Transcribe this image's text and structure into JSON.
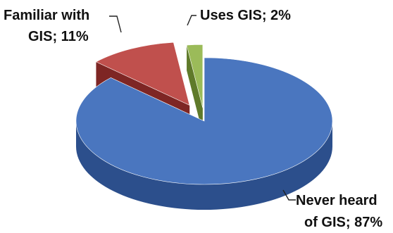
{
  "chart_data": {
    "type": "pie",
    "style": "3d-exploded",
    "title": "",
    "slices": [
      {
        "label_line1": "Never heard",
        "label_line2": "of GIS; 87%",
        "name": "Never heard of GIS",
        "value": 87,
        "color": "#4a76bf",
        "side_color": "#2c4f8c"
      },
      {
        "label_line1": "Familiar with",
        "label_line2": "GIS; 11%",
        "name": "Familiar with GIS",
        "value": 11,
        "color": "#c0504d",
        "side_color": "#7e2624"
      },
      {
        "label_line1": "Uses GIS; 2%",
        "label_line2": "",
        "name": "Uses GIS",
        "value": 2,
        "color": "#9bbb59",
        "side_color": "#5f7a2a"
      }
    ]
  }
}
